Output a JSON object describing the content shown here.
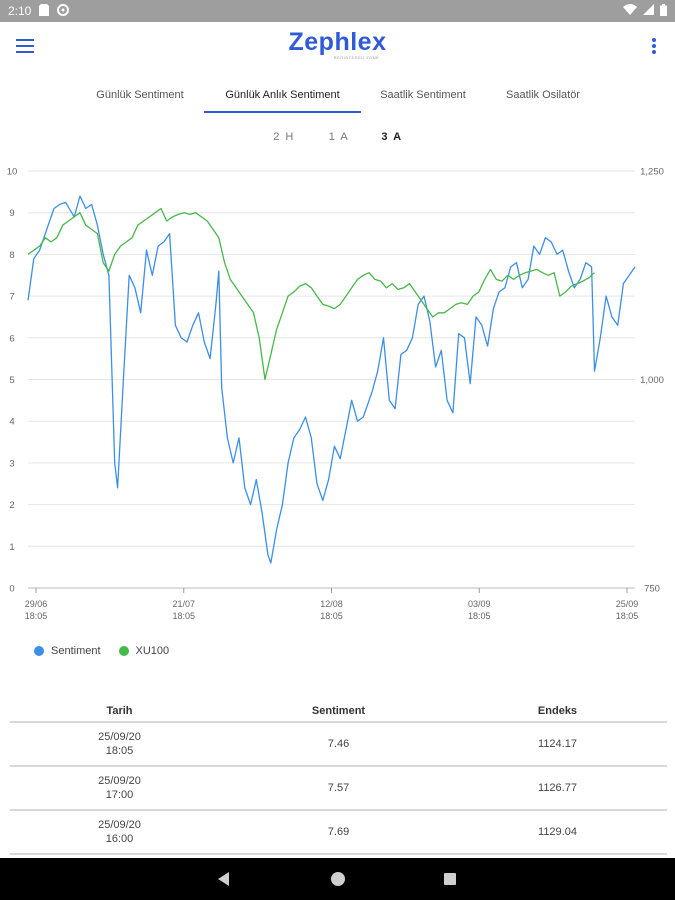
{
  "status_bar": {
    "time": "2:10"
  },
  "app": {
    "logo": "Zephlex",
    "logo_sub": "REGISTERED ZONE"
  },
  "tabs": [
    {
      "label": "Günlük Sentiment"
    },
    {
      "label": "Günlük Anlık Sentiment"
    },
    {
      "label": "Saatlik Sentiment"
    },
    {
      "label": "Saatlik Osilatör"
    }
  ],
  "active_tab": 1,
  "ranges": [
    {
      "label": "2 H"
    },
    {
      "label": "1 A"
    },
    {
      "label": "3 A"
    }
  ],
  "active_range": 2,
  "chart_data": {
    "type": "line",
    "y_left": {
      "min": 0,
      "max": 10,
      "ticks": [
        "0",
        "1",
        "2",
        "3",
        "4",
        "5",
        "6",
        "7",
        "8",
        "9",
        "10"
      ]
    },
    "y_right": {
      "min": 750,
      "max": 1250,
      "ticks": [
        "750",
        "1,000",
        "1,250"
      ]
    },
    "x_ticks": [
      {
        "date": "29/06",
        "time": "18:05"
      },
      {
        "date": "21/07",
        "time": "18:05"
      },
      {
        "date": "12/08",
        "time": "18:05"
      },
      {
        "date": "03/09",
        "time": "18:05"
      },
      {
        "date": "25/09",
        "time": "18:05"
      }
    ],
    "grid": true,
    "legend_position": "bottom-left",
    "series": [
      {
        "name": "Sentiment",
        "color": "#3d8ee8",
        "axis": "left",
        "values": [
          6.9,
          7.9,
          8.1,
          8.5,
          9.1,
          9.2,
          9.25,
          8.9,
          9.4,
          9.1,
          9.2,
          8.7,
          8.0,
          7.5,
          3.0,
          2.4,
          5.0,
          7.5,
          7.2,
          6.6,
          8.1,
          7.5,
          8.2,
          8.3,
          8.5,
          6.3,
          6.0,
          5.9,
          6.3,
          6.6,
          5.9,
          5.5,
          6.8,
          7.6,
          4.8,
          3.6,
          3.0,
          3.6,
          2.4,
          2.0,
          2.6,
          1.8,
          0.8,
          0.6,
          1.4,
          2.0,
          3.0,
          3.6,
          3.8,
          4.1,
          3.6,
          2.5,
          2.1,
          2.6,
          3.4,
          3.1,
          3.8,
          4.5,
          4.0,
          4.1,
          4.5,
          4.7,
          5.2,
          6.0,
          4.5,
          4.3,
          5.6,
          5.7,
          6.0,
          6.8,
          7.0,
          6.4,
          5.3,
          5.7,
          4.5,
          4.2,
          6.1,
          6.0,
          4.9,
          6.5,
          6.3,
          5.8,
          6.7,
          7.1,
          7.2,
          7.7,
          7.8,
          7.2,
          7.4,
          8.2,
          8.0,
          8.4,
          8.3,
          8.0,
          8.1,
          7.6,
          7.2,
          7.4,
          7.8,
          7.7,
          5.2,
          6.0,
          7.0,
          6.5,
          6.3,
          7.3,
          7.5,
          7.7
        ],
        "x_positions": [
          0,
          2,
          4,
          6,
          9,
          11,
          13,
          16,
          18,
          20,
          22,
          24,
          26,
          28,
          30,
          31,
          33,
          35,
          37,
          39,
          41,
          43,
          45,
          47,
          49,
          51,
          53,
          55,
          57,
          59,
          61,
          63,
          65,
          66,
          67,
          69,
          71,
          73,
          75,
          77,
          79,
          81,
          83,
          84,
          86,
          88,
          90,
          92,
          94,
          96,
          98,
          100,
          102,
          104,
          106,
          108,
          110,
          112,
          114,
          116,
          118,
          119,
          121,
          123,
          125,
          127,
          129,
          131,
          133,
          135,
          137,
          139,
          141,
          143,
          145,
          147,
          149,
          151,
          153,
          155,
          157,
          159,
          161,
          163,
          165,
          167,
          169,
          171,
          173,
          175,
          177,
          179,
          181,
          183,
          185,
          187,
          189,
          191,
          193,
          195,
          196,
          198,
          200,
          202,
          204,
          206,
          208,
          210
        ]
      },
      {
        "name": "XU100",
        "color": "#47b84a",
        "axis": "right",
        "values": [
          1150,
          1155,
          1160,
          1170,
          1165,
          1170,
          1185,
          1190,
          1195,
          1200,
          1185,
          1180,
          1175,
          1140,
          1130,
          1150,
          1160,
          1165,
          1170,
          1185,
          1190,
          1195,
          1200,
          1205,
          1190,
          1195,
          1198,
          1200,
          1198,
          1200,
          1195,
          1190,
          1180,
          1170,
          1140,
          1120,
          1110,
          1100,
          1090,
          1080,
          1050,
          1000,
          1030,
          1060,
          1080,
          1100,
          1105,
          1112,
          1115,
          1110,
          1100,
          1090,
          1088,
          1085,
          1090,
          1100,
          1110,
          1120,
          1125,
          1128,
          1120,
          1118,
          1110,
          1115,
          1108,
          1110,
          1115,
          1105,
          1095,
          1085,
          1075,
          1080,
          1080,
          1085,
          1090,
          1092,
          1090,
          1100,
          1105,
          1120,
          1132,
          1120,
          1118,
          1125,
          1120,
          1125,
          1128,
          1130,
          1132,
          1128,
          1125,
          1128,
          1100,
          1105,
          1112,
          1115,
          1118,
          1122,
          1128
        ],
        "x_positions": [
          0,
          2,
          4,
          6,
          8,
          10,
          12,
          14,
          16,
          18,
          20,
          22,
          24,
          26,
          28,
          30,
          32,
          34,
          36,
          38,
          40,
          42,
          44,
          46,
          48,
          50,
          52,
          54,
          56,
          58,
          60,
          62,
          64,
          66,
          68,
          70,
          72,
          74,
          76,
          78,
          80,
          82,
          84,
          86,
          88,
          90,
          92,
          94,
          96,
          98,
          100,
          102,
          104,
          106,
          108,
          110,
          112,
          114,
          116,
          118,
          120,
          122,
          124,
          126,
          128,
          130,
          132,
          134,
          136,
          138,
          140,
          142,
          144,
          146,
          148,
          150,
          152,
          154,
          156,
          158,
          160,
          162,
          164,
          166,
          168,
          170,
          172,
          174,
          176,
          178,
          180,
          182,
          184,
          186,
          188,
          190,
          192,
          194,
          196
        ]
      }
    ],
    "x_max": 210
  },
  "table": {
    "headers": {
      "date": "Tarih",
      "sentiment": "Sentiment",
      "index": "Endeks"
    },
    "rows": [
      {
        "date": "25/09/20",
        "time": "18:05",
        "sentiment": "7.46",
        "index": "1124.17"
      },
      {
        "date": "25/09/20",
        "time": "17:00",
        "sentiment": "7.57",
        "index": "1126.77"
      },
      {
        "date": "25/09/20",
        "time": "16:00",
        "sentiment": "7.69",
        "index": "1129.04"
      }
    ]
  },
  "colors": {
    "accent": "#2f5bd8",
    "sentiment": "#3d8ee8",
    "xu100": "#47b84a"
  }
}
